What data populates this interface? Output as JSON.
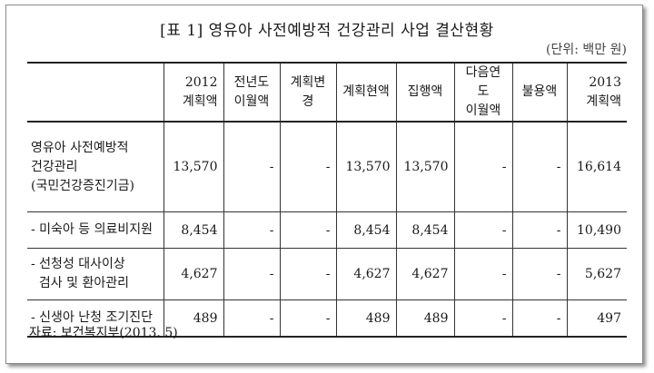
{
  "title": "[표 1] 영유아 사전예방적 건강관리 사업 결산현황",
  "unit": "(단위: 백만 원)",
  "table": {
    "headers": [
      [
        "",
        ""
      ],
      [
        "2012",
        "계획액"
      ],
      [
        "전년도",
        "이월액"
      ],
      [
        "계획변경",
        ""
      ],
      [
        "계획현액",
        ""
      ],
      [
        "집행액",
        ""
      ],
      [
        "다음연도",
        "이월액"
      ],
      [
        "불용액",
        ""
      ],
      [
        "2013",
        "계획액"
      ]
    ],
    "rows": [
      {
        "label": [
          "영유아 사전예방적",
          "건강관리",
          "(국민건강증진기금)"
        ],
        "cells": [
          "13,570",
          "-",
          "-",
          "13,570",
          "13,570",
          "-",
          "-",
          "16,614"
        ]
      },
      {
        "label": [
          "- 미숙아 등 의료비지원"
        ],
        "cells": [
          "8,454",
          "-",
          "-",
          "8,454",
          "8,454",
          "-",
          "-",
          "10,490"
        ]
      },
      {
        "label": [
          "- 선청성 대사이상",
          "  검사 및 환아관리"
        ],
        "cells": [
          "4,627",
          "-",
          "-",
          "4,627",
          "4,627",
          "-",
          "-",
          "5,627"
        ]
      },
      {
        "label": [
          "- 신생아 난청 조기진단"
        ],
        "cells": [
          "489",
          "-",
          "-",
          "489",
          "489",
          "-",
          "-",
          "497"
        ]
      }
    ]
  },
  "source": "자료: 보건복지부(2013. 5)"
}
